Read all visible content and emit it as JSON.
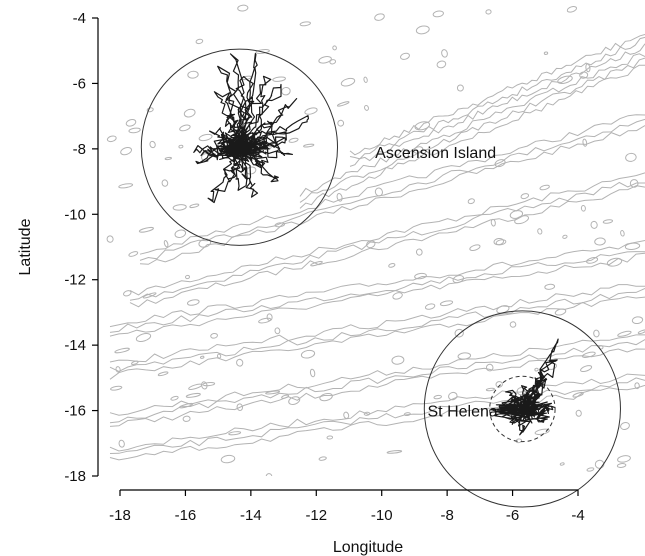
{
  "chart_data": {
    "type": "scatter",
    "title": "",
    "xlabel": "Longitude",
    "ylabel": "Latitude",
    "xlim": [
      -18,
      -4
    ],
    "ylim": [
      -18,
      -4
    ],
    "x_ticks": [
      -18,
      -16,
      -14,
      -12,
      -10,
      -8,
      -6,
      -4
    ],
    "y_ticks": [
      -4,
      -6,
      -8,
      -10,
      -12,
      -14,
      -16,
      -18
    ],
    "grid": false,
    "background": "bathymetric contour lines (grey)",
    "islands": [
      {
        "name": "Ascension Island",
        "lon": -14.35,
        "lat": -7.95,
        "range_radius_deg": 3.0,
        "label_lon": -10.2,
        "label_lat": -8.1
      },
      {
        "name": "St Helena",
        "lon": -5.7,
        "lat": -15.95,
        "range_radius_deg": 3.0,
        "inner_radius_deg": 1.0,
        "label_lon": -8.6,
        "label_lat": -16.0
      }
    ],
    "series": [
      {
        "points": [
          [
            -14.35,
            -7.95
          ],
          [
            -14.9,
            -5.5
          ],
          [
            -14.5,
            -5.2
          ],
          [
            -14.2,
            -5.7
          ],
          [
            -13.8,
            -5.0
          ],
          [
            -13.5,
            -5.8
          ],
          [
            -13.2,
            -6.0
          ],
          [
            -12.7,
            -6.5
          ],
          [
            -12.2,
            -7.0
          ],
          [
            -13.0,
            -7.6
          ],
          [
            -12.8,
            -8.2
          ],
          [
            -13.6,
            -8.6
          ],
          [
            -13.2,
            -9.0
          ],
          [
            -14.0,
            -9.4
          ],
          [
            -14.6,
            -8.9
          ],
          [
            -15.3,
            -9.6
          ],
          [
            -15.6,
            -8.4
          ],
          [
            -15.7,
            -8.0
          ],
          [
            -15.2,
            -7.5
          ],
          [
            -14.8,
            -7.0
          ],
          [
            -15.0,
            -6.2
          ],
          [
            -14.2,
            -6.5
          ],
          [
            -13.4,
            -7.2
          ],
          [
            -13.0,
            -7.8
          ],
          [
            -14.35,
            -9.2
          ],
          [
            -14.8,
            -8.3
          ],
          [
            -15.5,
            -8.1
          ]
        ]
      },
      {
        "points": [
          [
            -5.7,
            -15.95
          ],
          [
            -5.2,
            -15.5
          ],
          [
            -4.8,
            -15.9
          ],
          [
            -5.0,
            -16.3
          ],
          [
            -5.7,
            -16.7
          ],
          [
            -6.1,
            -16.4
          ],
          [
            -6.4,
            -15.9
          ],
          [
            -6.1,
            -15.4
          ],
          [
            -5.6,
            -15.3
          ],
          [
            -5.2,
            -15.1
          ],
          [
            -5.1,
            -14.9
          ],
          [
            -4.8,
            -14.4
          ],
          [
            -4.6,
            -13.8
          ],
          [
            -5.0,
            -16.0
          ]
        ]
      }
    ]
  }
}
